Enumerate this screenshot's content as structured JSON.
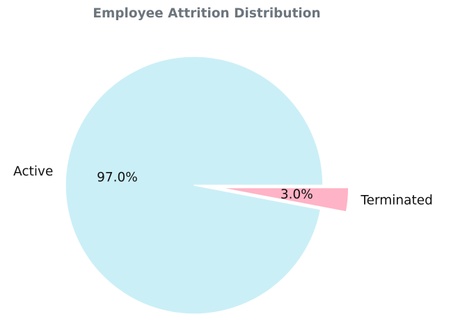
{
  "chart_data": {
    "type": "pie",
    "title": "Employee Attrition Distribution",
    "categories": [
      "Active",
      "Terminated"
    ],
    "values": [
      97.0,
      3.0
    ],
    "value_labels": [
      "97.0%",
      "3.0%"
    ],
    "colors": [
      "#cbeff7",
      "#ffb3c6"
    ],
    "exploded": [
      false,
      true
    ],
    "title_color": "#6c757d",
    "edge_color": "#ffffff",
    "start_angle_deg": 0,
    "direction": "counterclockwise"
  }
}
